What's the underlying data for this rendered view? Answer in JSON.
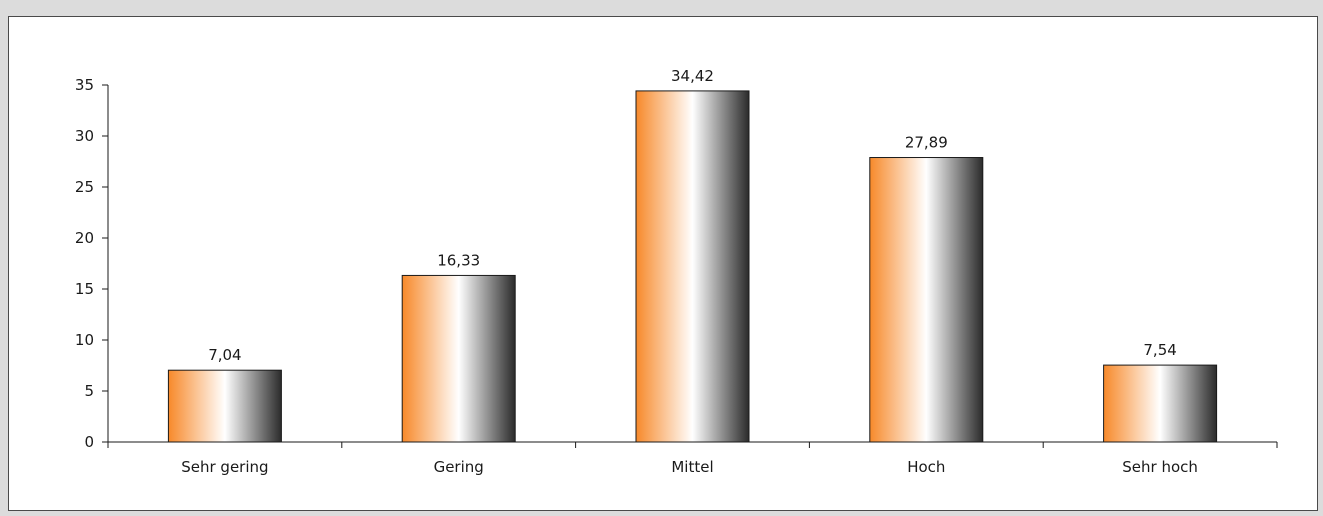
{
  "chart_data": {
    "type": "bar",
    "categories": [
      "Sehr gering",
      "Gering",
      "Mittel",
      "Hoch",
      "Sehr hoch"
    ],
    "values": [
      7.04,
      16.33,
      34.42,
      27.89,
      7.54
    ],
    "value_labels": [
      "7,04",
      "16,33",
      "34,42",
      "27,89",
      "7,54"
    ],
    "ylim": [
      0,
      35
    ],
    "yticks": [
      0,
      5,
      10,
      15,
      20,
      25,
      30,
      35
    ],
    "grid": false,
    "bar_gradient": [
      "#f7892a",
      "#ffffff",
      "#2b2b2b"
    ]
  }
}
